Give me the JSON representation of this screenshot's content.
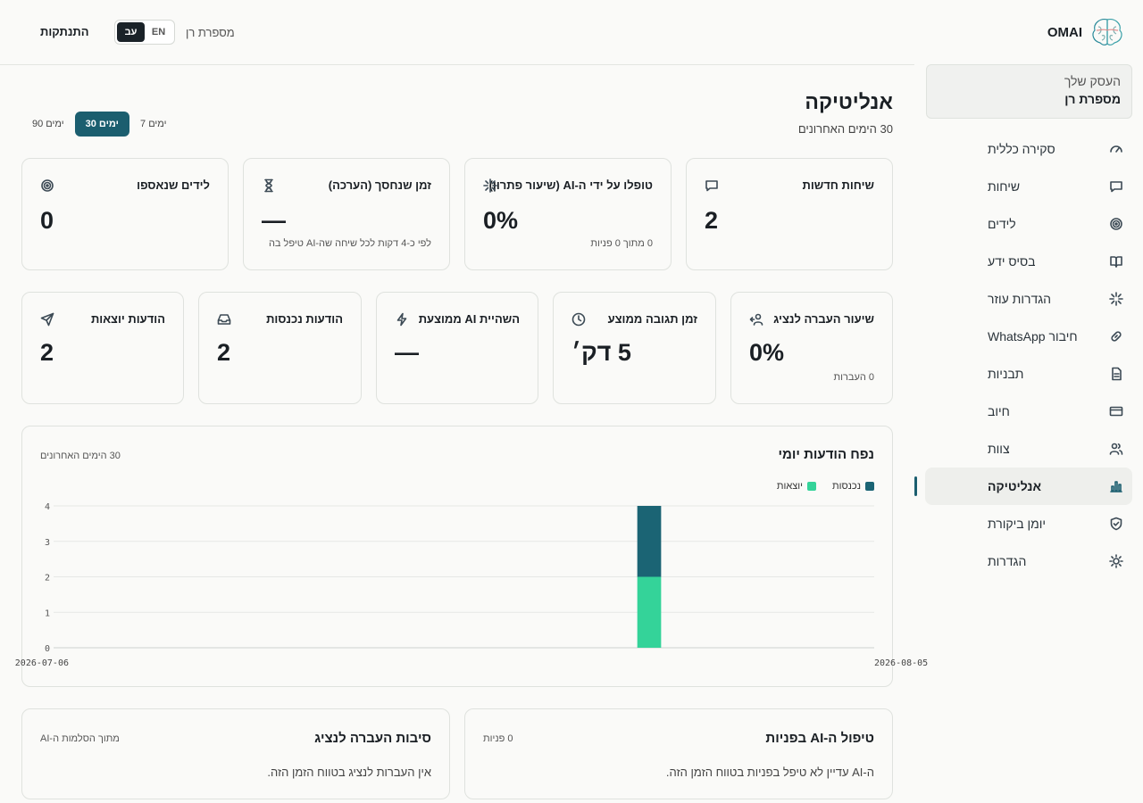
{
  "sidebar": {
    "brand": "OMAI",
    "business_label": "העסק שלך",
    "business_name": "מספרת רן",
    "items": [
      {
        "label": "סקירה כללית",
        "icon": "gauge-icon"
      },
      {
        "label": "שיחות",
        "icon": "chat-icon"
      },
      {
        "label": "לידים",
        "icon": "target-icon"
      },
      {
        "label": "בסיס ידע",
        "icon": "book-icon"
      },
      {
        "label": "הגדרות עוזר",
        "icon": "sparkle-icon"
      },
      {
        "label": "חיבור WhatsApp",
        "icon": "link-icon"
      },
      {
        "label": "תבניות",
        "icon": "file-icon"
      },
      {
        "label": "חיוב",
        "icon": "card-icon"
      },
      {
        "label": "צוות",
        "icon": "users-icon"
      },
      {
        "label": "אנליטיקה",
        "icon": "bar-chart-icon",
        "active": true
      },
      {
        "label": "יומן ביקורת",
        "icon": "shield-check-icon"
      },
      {
        "label": "הגדרות",
        "icon": "sun-gear-icon"
      }
    ]
  },
  "topbar": {
    "logout": "התנתקות",
    "lang_en": "EN",
    "lang_he": "עב",
    "business_name": "מספרת רן"
  },
  "page": {
    "title": "אנליטיקה",
    "subtitle": "30 הימים האחרונים",
    "ranges": [
      "7 ימים",
      "30 ימים",
      "90 ימים"
    ],
    "active_range": "30 ימים"
  },
  "stats_row1": [
    {
      "title": "שיחות חדשות",
      "value": "2",
      "note": "",
      "icon": "chat-icon"
    },
    {
      "title": "טופלו על ידי ה-AI (שיעור פתרון)",
      "value": "0%",
      "note": "0 מתוך 0 פניות",
      "icon": "sparkle-icon"
    },
    {
      "title": "זמן שנחסך (הערכה)",
      "value": "—",
      "note": "לפי כ-4 דקות לכל שיחה שה-AI טיפל בה",
      "icon": "hourglass-icon"
    },
    {
      "title": "לידים שנאספו",
      "value": "0",
      "note": "",
      "icon": "target-icon"
    }
  ],
  "stats_row2": [
    {
      "title": "שיעור העברה לנציג",
      "value": "0%",
      "note": "0 העברות",
      "icon": "user-transfer-icon"
    },
    {
      "title": "זמן תגובה ממוצע",
      "value": "5 דק׳",
      "note": "",
      "icon": "clock-icon"
    },
    {
      "title": "השהיית AI ממוצעת",
      "value": "—",
      "note": "",
      "icon": "bolt-icon"
    },
    {
      "title": "הודעות נכנסות",
      "value": "2",
      "note": "",
      "icon": "inbox-icon"
    },
    {
      "title": "הודעות יוצאות",
      "value": "2",
      "note": "",
      "icon": "send-icon"
    }
  ],
  "chart": {
    "title": "נפח הודעות יומי",
    "subtitle": "30 הימים האחרונים",
    "legend_in": "נכנסות",
    "legend_out": "יוצאות"
  },
  "chart_data": {
    "type": "bar",
    "stacked": true,
    "x_start": "2026-07-06",
    "x_end": "2026-08-05",
    "x_tick_labels": [
      "2026-07-06",
      "2026-08-05"
    ],
    "y_ticks": [
      0,
      1,
      2,
      3,
      4
    ],
    "ylim": [
      0,
      4
    ],
    "grid": true,
    "legend": "top-right",
    "bars": [
      {
        "date": "2026-07-28",
        "inbound": 2,
        "outbound": 2
      }
    ],
    "colors": {
      "inbound": "#1b6474",
      "outbound": "#34d399"
    }
  },
  "bottom": {
    "ai_handling": {
      "title": "טיפול ה-AI בפניות",
      "aside": "0 פניות",
      "text": "ה-AI עדיין לא טיפל בפניות בטווח הזמן הזה."
    },
    "handoff_reasons": {
      "title": "סיבות העברה לנציג",
      "aside": "מתוך הסלמות ה-AI",
      "text": "אין העברות לנציג בטווח הזמן הזה."
    }
  }
}
